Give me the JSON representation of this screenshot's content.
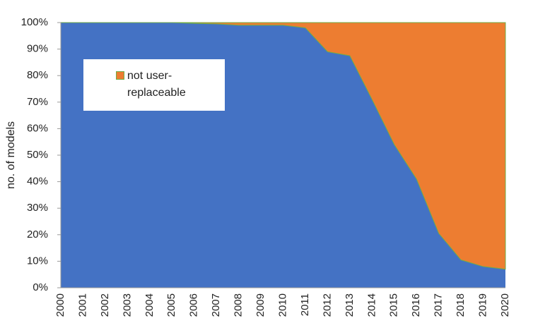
{
  "chart_data": {
    "type": "stacked-area",
    "y_label": "no. of models",
    "categories": [
      "2000",
      "2001",
      "2002",
      "2003",
      "2004",
      "2005",
      "2006",
      "2007",
      "2008",
      "2009",
      "2010",
      "2011",
      "2012",
      "2013",
      "2014",
      "2015",
      "2016",
      "2017",
      "2018",
      "2019",
      "2020"
    ],
    "series": [
      {
        "color": "#4472c4",
        "values": [
          100,
          100,
          100,
          100,
          100,
          100,
          99.7,
          99.5,
          99,
          99,
          99,
          98,
          89,
          87.5,
          71,
          54,
          41,
          20.5,
          10.5,
          8,
          7
        ]
      },
      {
        "name": "not user-replaceable",
        "color": "#ed7d31",
        "values": [
          0,
          0,
          0,
          0,
          0,
          0,
          0.3,
          0.5,
          1,
          1,
          1,
          2,
          11,
          12.5,
          29,
          46,
          59,
          79.5,
          89.5,
          92,
          93
        ]
      }
    ],
    "ylim": [
      0,
      100
    ],
    "yticks": [
      {
        "value": 0,
        "label": "0%"
      },
      {
        "value": 10,
        "label": "10%"
      },
      {
        "value": 20,
        "label": "20%"
      },
      {
        "value": 30,
        "label": "30%"
      },
      {
        "value": 40,
        "label": "40%"
      },
      {
        "value": 50,
        "label": "50%"
      },
      {
        "value": 60,
        "label": "60%"
      },
      {
        "value": 70,
        "label": "70%"
      },
      {
        "value": 80,
        "label": "80%"
      },
      {
        "value": 90,
        "label": "90%"
      },
      {
        "value": 100,
        "label": "100%"
      }
    ],
    "legend": "upper left"
  }
}
